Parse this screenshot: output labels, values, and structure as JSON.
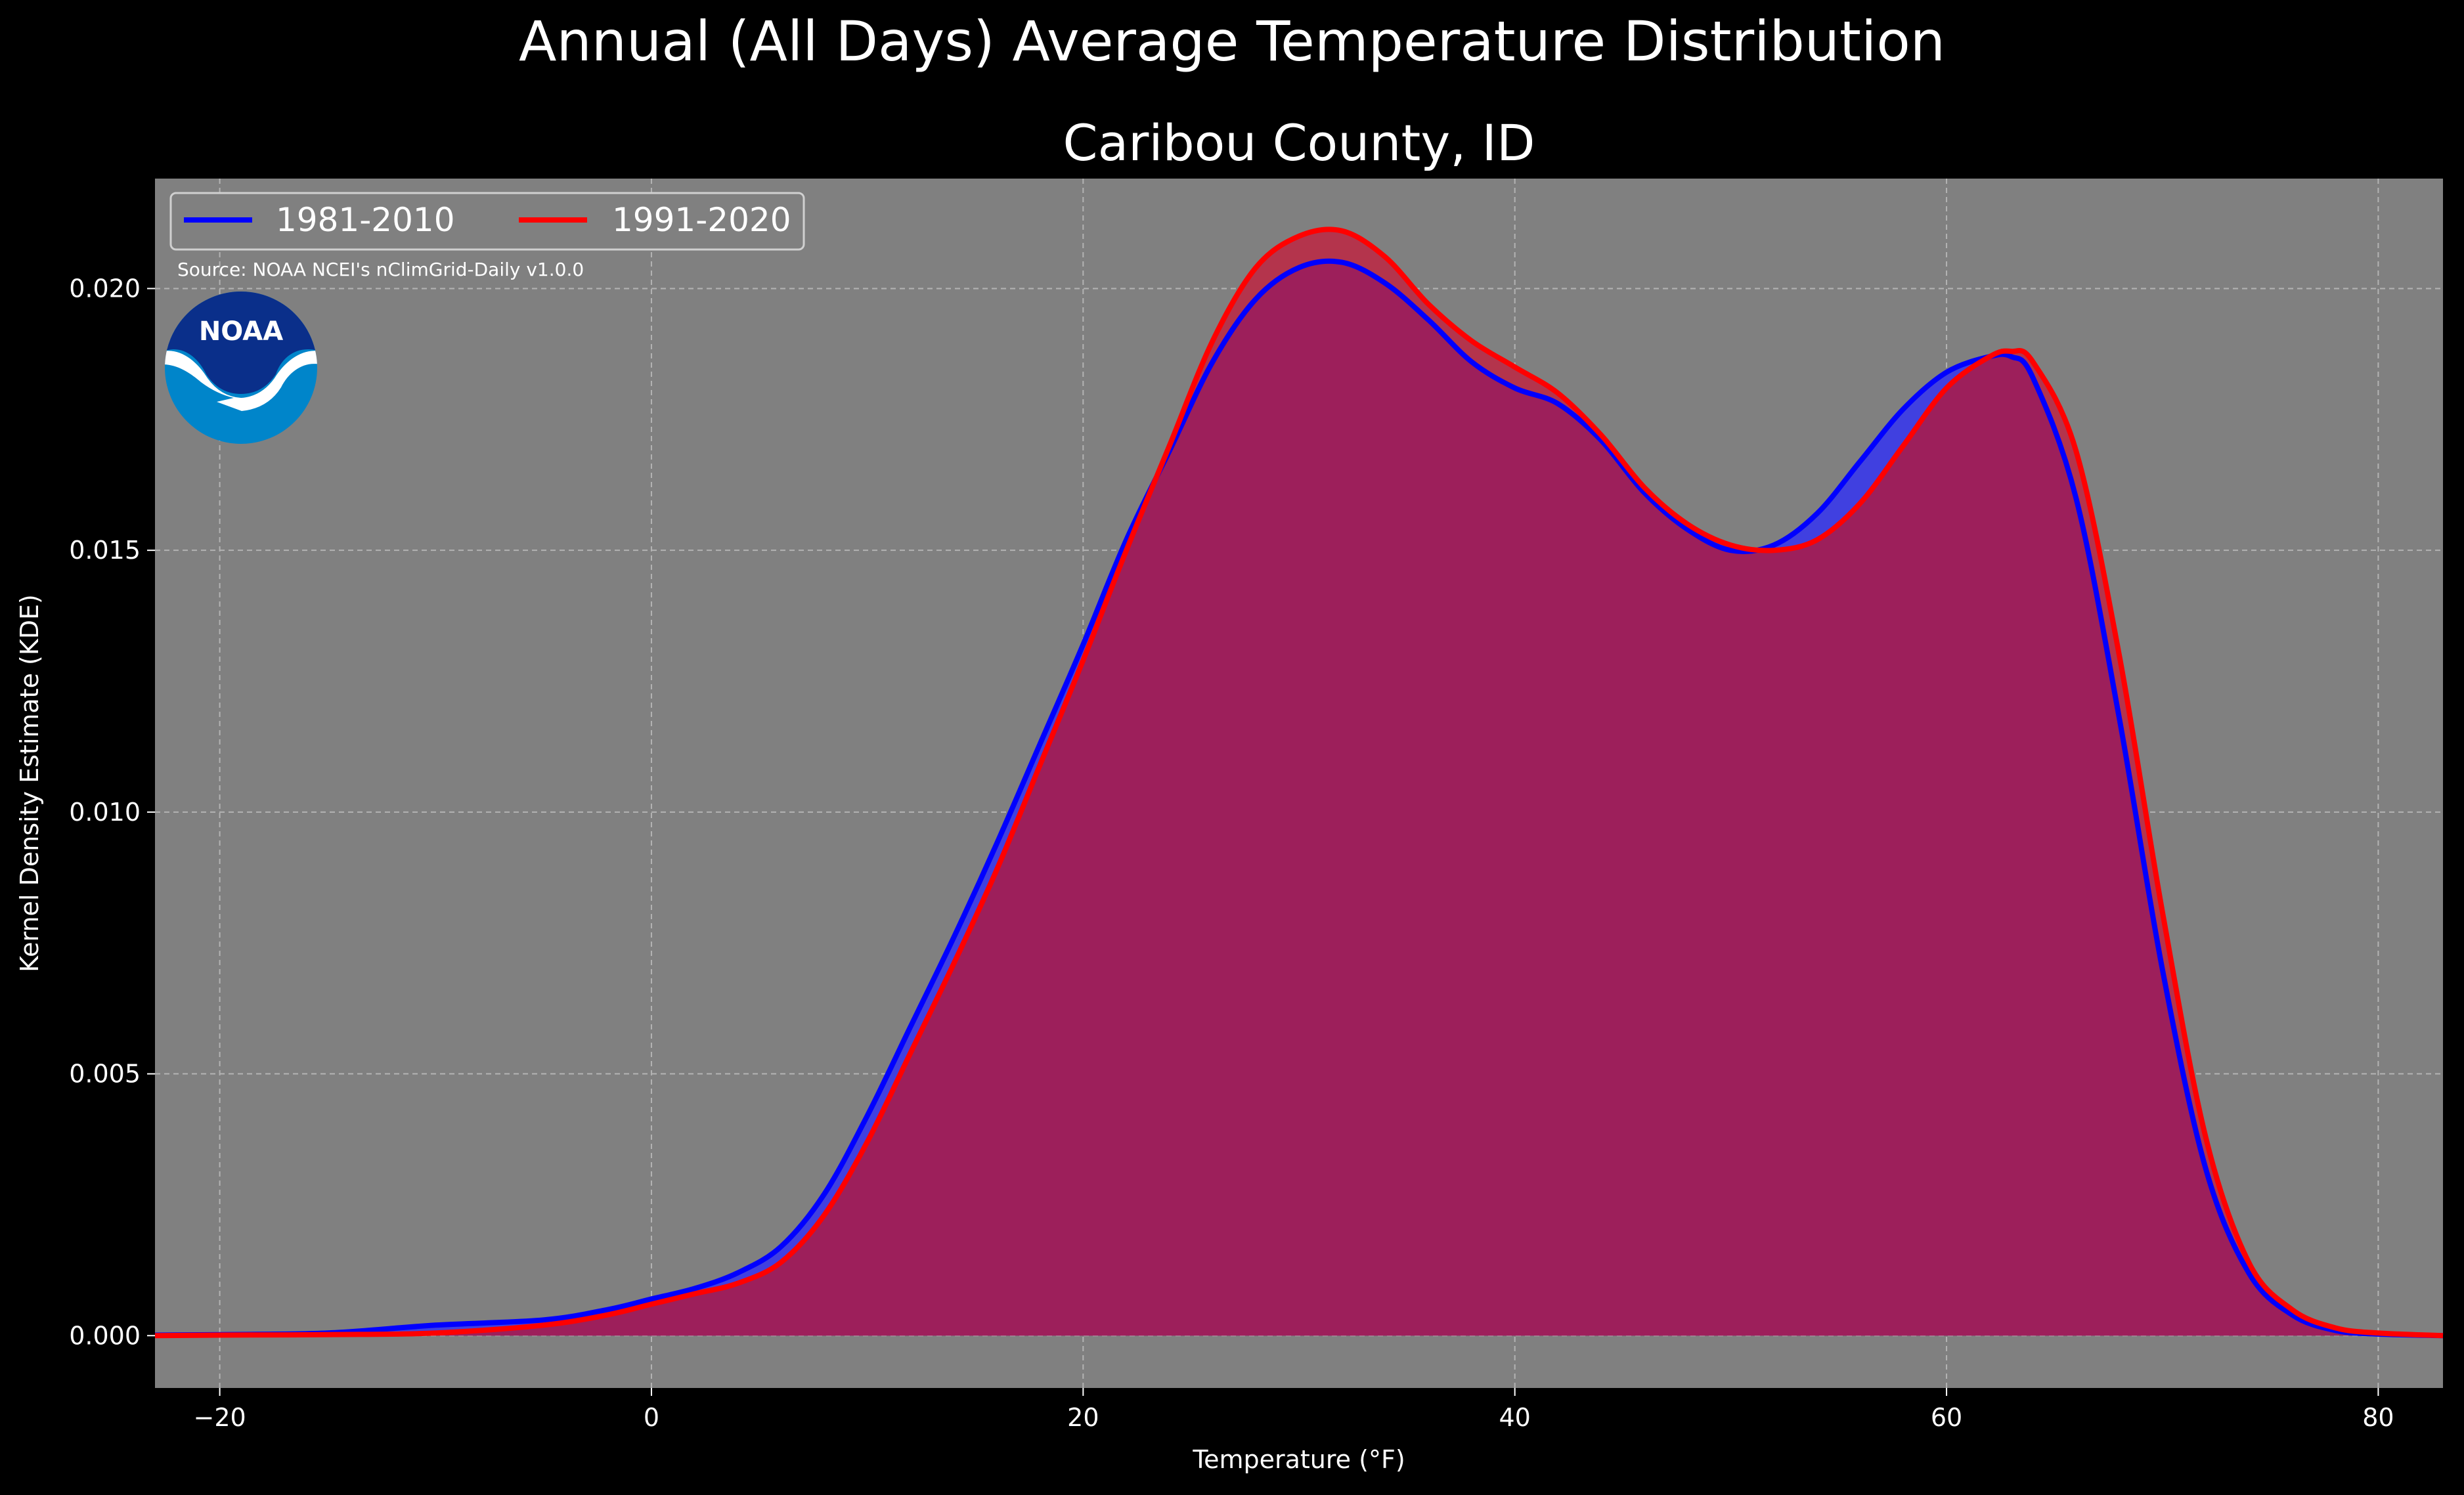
{
  "chart_data": {
    "type": "area",
    "title": "Annual (All Days) Average Temperature Distribution",
    "subtitle": "Caribou County, ID",
    "xlabel": "Temperature (°F)",
    "ylabel": "Kernel Density Estimate (KDE)",
    "source": "Source: NOAA NCEI's nClimGrid-Daily v1.0.0",
    "logo_text": "NOAA",
    "xlim": [
      -23,
      83
    ],
    "ylim": [
      -0.001,
      0.0221
    ],
    "xticks": [
      -20,
      0,
      20,
      40,
      60,
      80
    ],
    "yticks": [
      0.0,
      0.005,
      0.01,
      0.015,
      0.02
    ],
    "xtick_labels": [
      "−20",
      "0",
      "20",
      "40",
      "60",
      "80"
    ],
    "ytick_labels": [
      "0.000",
      "0.005",
      "0.010",
      "0.015",
      "0.020"
    ],
    "grid": true,
    "legend_position": "upper-left",
    "colors": {
      "figure_bg": "#000000",
      "axes_bg": "#808080",
      "grid": "#b3b3b3",
      "fill": "#9d1f5b",
      "fill_blue_diff": "#4040e0",
      "fill_red_diff": "#b4344c",
      "noaa_dark": "#0a2f8a",
      "noaa_light": "#0085ca"
    },
    "series": [
      {
        "name": "1981-2010",
        "color": "#0000ff",
        "x": [
          -23,
          -20,
          -15,
          -10,
          -5,
          -2,
          0,
          2,
          4,
          6,
          8,
          10,
          12,
          14,
          16,
          18,
          20,
          22,
          24,
          26,
          28,
          30,
          32,
          34,
          36,
          38,
          40,
          42,
          44,
          46,
          48,
          50,
          52,
          54,
          56,
          58,
          60,
          62,
          63,
          64,
          66,
          68,
          70,
          72,
          74,
          76,
          78,
          80,
          83
        ],
        "y": [
          1e-05,
          2e-05,
          5e-05,
          0.0002,
          0.0003,
          0.0005,
          0.0007,
          0.0009,
          0.0012,
          0.0017,
          0.0027,
          0.0042,
          0.0059,
          0.0076,
          0.0094,
          0.0113,
          0.0132,
          0.0152,
          0.0169,
          0.0186,
          0.0198,
          0.0204,
          0.0205,
          0.0201,
          0.0194,
          0.0186,
          0.0181,
          0.0178,
          0.0171,
          0.0161,
          0.0154,
          0.015,
          0.0151,
          0.0157,
          0.0167,
          0.0177,
          0.0184,
          0.0187,
          0.0187,
          0.0183,
          0.016,
          0.0118,
          0.007,
          0.0032,
          0.0012,
          0.0004,
          0.0001,
          3e-05,
          0.0
        ]
      },
      {
        "name": "1991-2020",
        "color": "#ff0000",
        "x": [
          -23,
          -20,
          -15,
          -10,
          -5,
          -2,
          0,
          2,
          4,
          6,
          8,
          10,
          12,
          14,
          16,
          18,
          20,
          22,
          24,
          26,
          28,
          30,
          32,
          34,
          36,
          38,
          40,
          42,
          44,
          46,
          48,
          50,
          52,
          54,
          56,
          58,
          60,
          62,
          63,
          64,
          66,
          68,
          70,
          72,
          74,
          76,
          78,
          80,
          83
        ],
        "y": [
          0.0,
          1e-05,
          2e-05,
          5e-05,
          0.0002,
          0.0004,
          0.0006,
          0.0008,
          0.001,
          0.0014,
          0.0023,
          0.0037,
          0.0054,
          0.0071,
          0.0089,
          0.0109,
          0.0129,
          0.015,
          0.017,
          0.019,
          0.0204,
          0.021,
          0.0211,
          0.0206,
          0.0197,
          0.019,
          0.0185,
          0.018,
          0.0172,
          0.0162,
          0.0155,
          0.0151,
          0.015,
          0.0152,
          0.0159,
          0.017,
          0.0181,
          0.0187,
          0.0188,
          0.0186,
          0.0169,
          0.013,
          0.0081,
          0.0038,
          0.0014,
          0.0005,
          0.00015,
          5e-05,
          0.0
        ]
      }
    ]
  }
}
